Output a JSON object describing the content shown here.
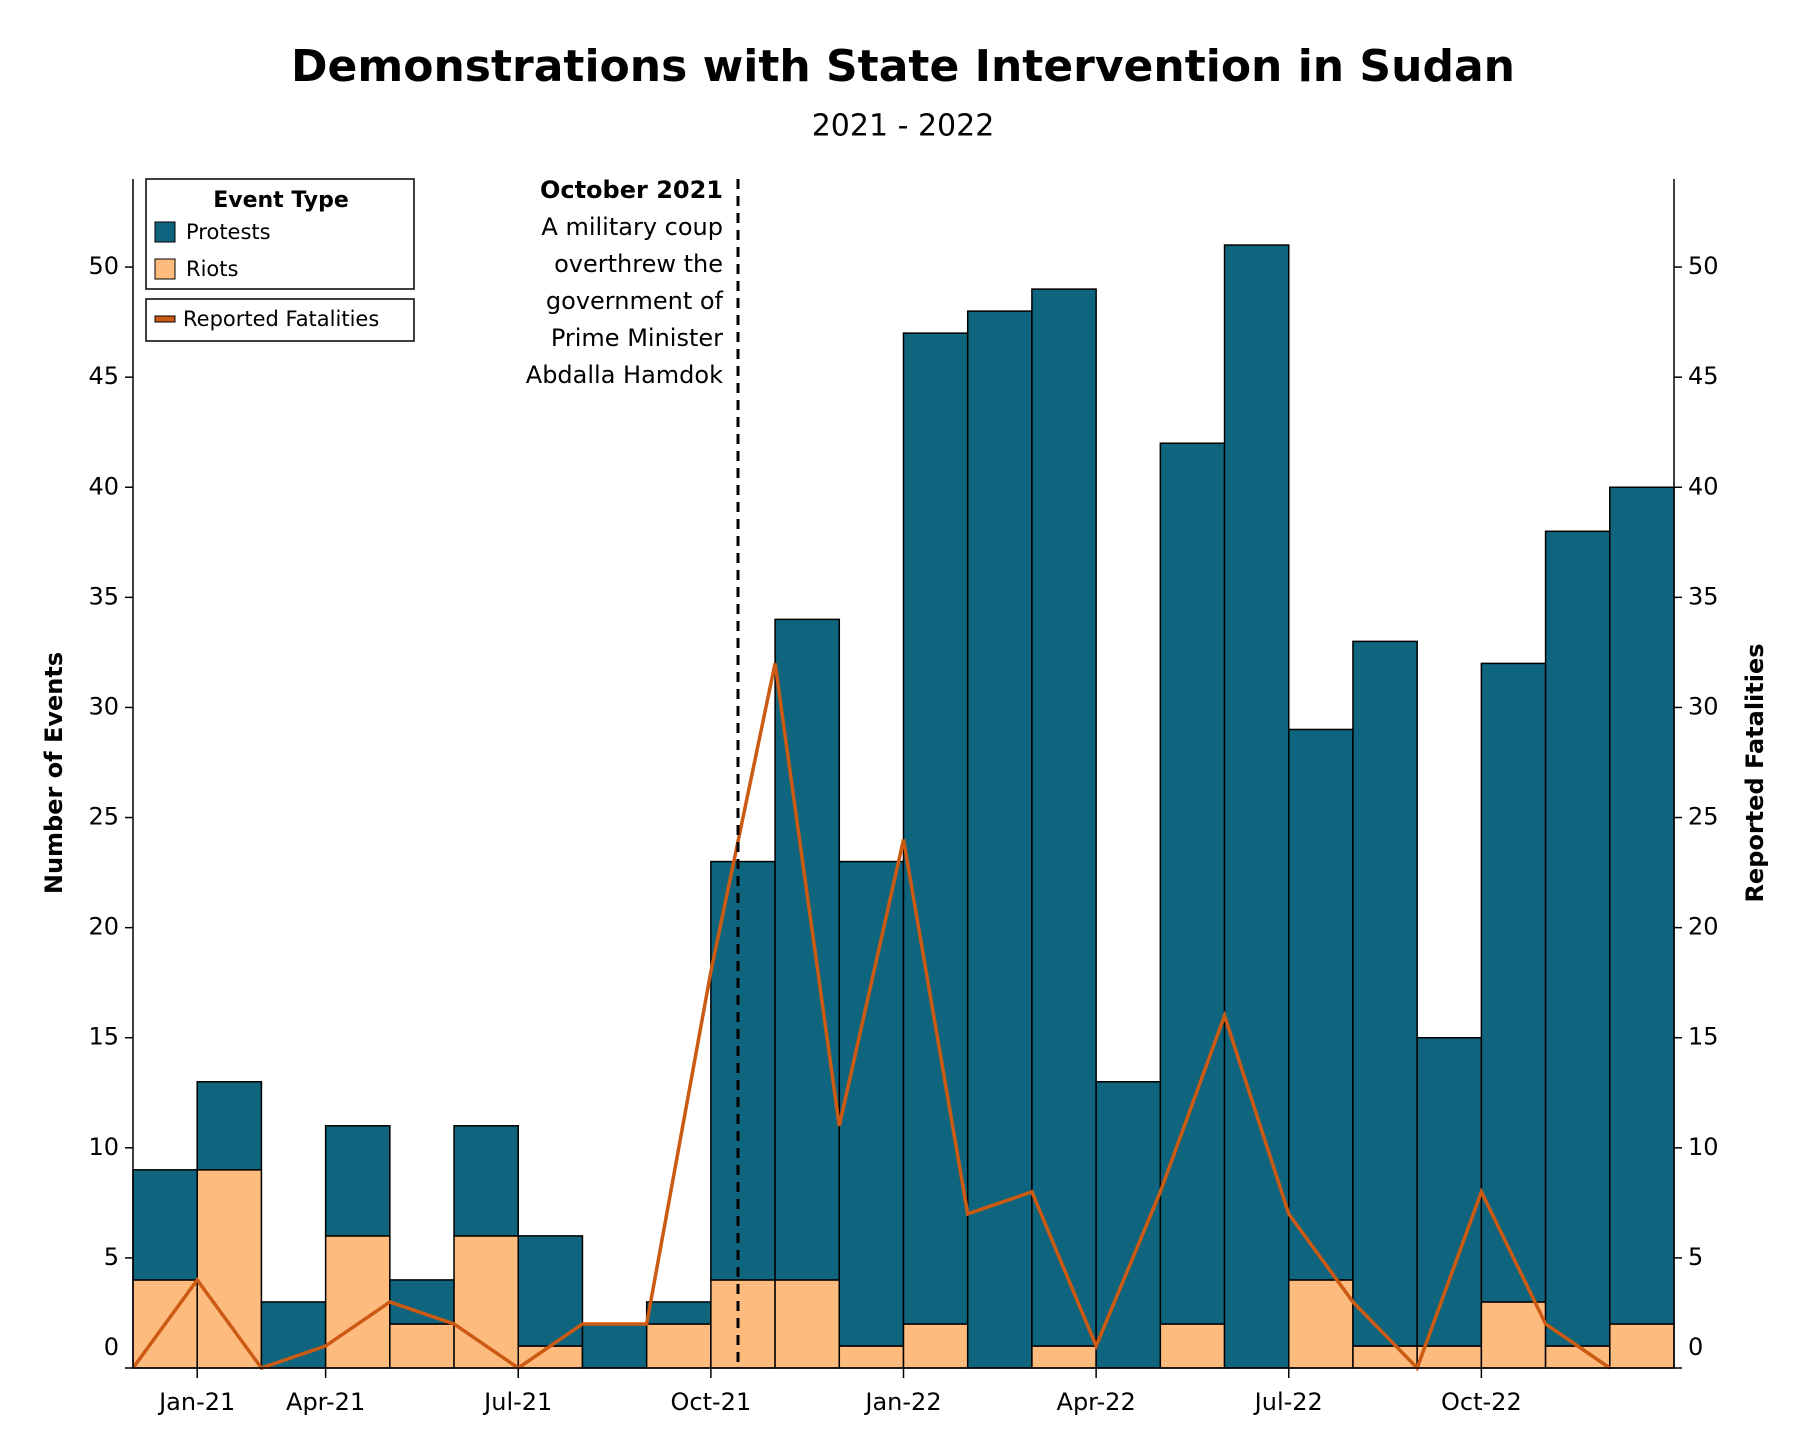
{
  "chart_data": {
    "type": "bar",
    "stacked": true,
    "title": "Demonstrations with State Intervention in Sudan",
    "subtitle": "2021 - 2022",
    "y_label": "Number of Events",
    "y2_label": "Reported Fatalities",
    "legend_title": "Event Type",
    "x": [
      0,
      1,
      2,
      3,
      4,
      5,
      6,
      7,
      8,
      9,
      10,
      11,
      12,
      13,
      14,
      15,
      16,
      17,
      18,
      19,
      20,
      21,
      22,
      23
    ],
    "xlim": [
      0,
      24
    ],
    "xticks": [
      {
        "value": 1,
        "label": "Jan-21"
      },
      {
        "value": 3,
        "label": "Apr-21"
      },
      {
        "value": 6,
        "label": "Jul-21"
      },
      {
        "value": 9,
        "label": "Oct-21"
      },
      {
        "value": 12,
        "label": "Jan-22"
      },
      {
        "value": 15,
        "label": "Apr-22"
      },
      {
        "value": 18,
        "label": "Jul-22"
      },
      {
        "value": 21,
        "label": "Oct-22"
      }
    ],
    "ylim": [
      0,
      54
    ],
    "yticks": [
      0,
      5,
      10,
      15,
      20,
      25,
      30,
      35,
      40,
      45,
      50
    ],
    "y2lim": [
      0,
      54
    ],
    "y2ticks": [
      0,
      5,
      10,
      15,
      20,
      25,
      30,
      35,
      40,
      45,
      50
    ],
    "series": [
      {
        "name": "Riots",
        "color": "#fdbb7e",
        "values": [
          4,
          9,
          0,
          6,
          2,
          6,
          1,
          0,
          2,
          4,
          4,
          1,
          2,
          0,
          1,
          0,
          2,
          0,
          4,
          1,
          1,
          3,
          1,
          2
        ]
      },
      {
        "name": "Protests",
        "color": "#10657e",
        "values": [
          5,
          4,
          3,
          5,
          2,
          5,
          5,
          2,
          1,
          19,
          30,
          22,
          45,
          48,
          48,
          13,
          40,
          51,
          25,
          32,
          14,
          29,
          37,
          38
        ]
      },
      {
        "name": "Reported Fatalities",
        "type": "line",
        "axis": "y2",
        "color": "#cc5a12",
        "values": [
          0,
          4,
          0,
          1,
          3,
          2,
          0,
          2,
          2,
          18,
          32,
          11,
          24,
          7,
          8,
          1,
          8,
          16,
          7,
          3,
          0,
          8,
          2,
          0
        ]
      }
    ],
    "annotation": {
      "title": "October 2021",
      "lines": [
        "A military coup",
        "overthrew the",
        "government of",
        "Prime Minister",
        "Abdalla Hamdok"
      ]
    }
  }
}
